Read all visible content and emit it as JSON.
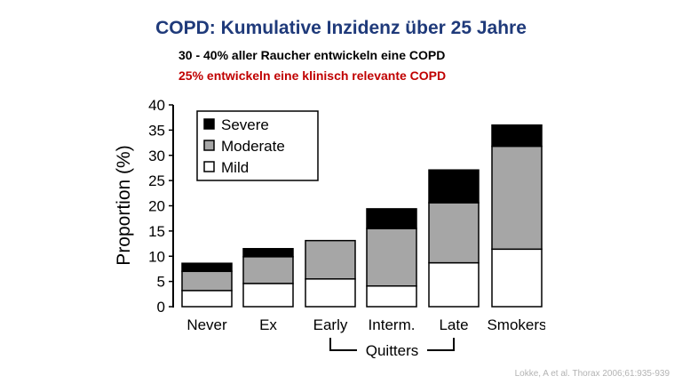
{
  "header": {
    "title": "COPD: Kumulative Inzidenz über 25 Jahre",
    "line1": "30 - 40% aller Raucher entwickeln eine COPD",
    "line2": "25% entwickeln eine klinisch relevante COPD"
  },
  "citation": "Lokke, A et al. Thorax 2006;61:935-939",
  "colors": {
    "title": "#1f3a7a",
    "highlight": "#c00000",
    "severe": "#000000",
    "moderate": "#a6a6a6",
    "mild": "#ffffff"
  },
  "chart_data": {
    "type": "bar",
    "stacked": true,
    "title": "",
    "xlabel": "",
    "ylabel": "Proportion (%)",
    "ylim": [
      0,
      40
    ],
    "yticks": [
      "0",
      "5",
      "10",
      "15",
      "20",
      "25",
      "30",
      "35",
      "40"
    ],
    "categories": [
      "Never",
      "Ex",
      "Early",
      "Interm.",
      "Late",
      "Smokers"
    ],
    "group_label": "Quitters",
    "group_members": [
      "Early",
      "Interm.",
      "Late"
    ],
    "legend_position": "top-left",
    "series": [
      {
        "name": "Mild",
        "color": "#ffffff",
        "values": [
          3.2,
          4.6,
          5.5,
          4.1,
          8.7,
          11.4
        ]
      },
      {
        "name": "Moderate",
        "color": "#a6a6a6",
        "values": [
          3.8,
          5.3,
          7.6,
          11.4,
          11.9,
          20.4
        ]
      },
      {
        "name": "Severe",
        "color": "#000000",
        "values": [
          1.6,
          1.6,
          0,
          3.9,
          6.5,
          4.2
        ]
      }
    ]
  }
}
